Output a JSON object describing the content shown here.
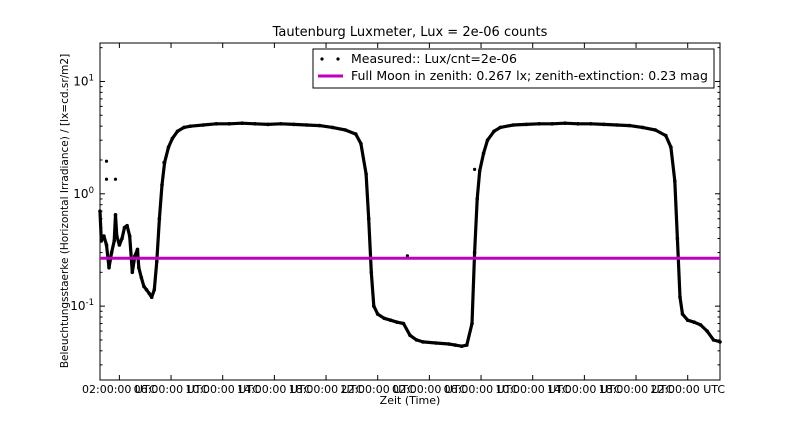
{
  "chart_data": {
    "type": "line",
    "title": "Tautenburg Luxmeter, Lux = 2e-06 counts",
    "xlabel": "Zeit (Time)",
    "ylabel": "Beleuchtungsstaerke (Horizontal Irradiance) / [lx=cd.sr/m2]",
    "yscale": "log",
    "ylim": [
      0.022,
      22
    ],
    "xlim": [
      0,
      48
    ],
    "x_unit": "hours since start of record",
    "x_ticks": [
      {
        "x": 1.5,
        "label": "02:00:00 UTC"
      },
      {
        "x": 5.5,
        "label": "06:00:00 UTC"
      },
      {
        "x": 9.5,
        "label": "10:00:00 UTC"
      },
      {
        "x": 13.5,
        "label": "14:00:00 UTC"
      },
      {
        "x": 17.5,
        "label": "18:00:00 UTC"
      },
      {
        "x": 21.5,
        "label": "22:00:00 UTC"
      },
      {
        "x": 25.5,
        "label": "02:00:00 UTC"
      },
      {
        "x": 29.5,
        "label": "06:00:00 UTC"
      },
      {
        "x": 33.5,
        "label": "10:00:00 UTC"
      },
      {
        "x": 37.5,
        "label": "14:00:00 UTC"
      },
      {
        "x": 41.5,
        "label": "18:00:00 UTC"
      },
      {
        "x": 45.5,
        "label": "22:00:00 UTC"
      }
    ],
    "y_ticks": [
      {
        "value": 0.1,
        "base": "10",
        "exp": "-1"
      },
      {
        "value": 1,
        "base": "10",
        "exp": "0"
      },
      {
        "value": 10,
        "base": "10",
        "exp": "1"
      }
    ],
    "legend_position": "top-right",
    "series": [
      {
        "name": "Measured:: Lux/cnt=2e-06",
        "color": "#000000",
        "marker": "dot",
        "points": [
          [
            0.0,
            0.7
          ],
          [
            0.1,
            0.38
          ],
          [
            0.3,
            0.42
          ],
          [
            0.5,
            0.35
          ],
          [
            0.7,
            0.22
          ],
          [
            0.9,
            0.3
          ],
          [
            1.1,
            0.38
          ],
          [
            1.2,
            0.65
          ],
          [
            1.3,
            0.42
          ],
          [
            1.5,
            0.35
          ],
          [
            1.7,
            0.4
          ],
          [
            1.9,
            0.5
          ],
          [
            2.1,
            0.52
          ],
          [
            2.3,
            0.42
          ],
          [
            2.5,
            0.2
          ],
          [
            2.7,
            0.28
          ],
          [
            2.9,
            0.32
          ],
          [
            3.0,
            0.22
          ],
          [
            3.2,
            0.18
          ],
          [
            3.4,
            0.15
          ],
          [
            3.6,
            0.14
          ],
          [
            3.8,
            0.13
          ],
          [
            4.0,
            0.12
          ],
          [
            4.2,
            0.14
          ],
          [
            4.4,
            0.25
          ],
          [
            4.6,
            0.6
          ],
          [
            4.8,
            1.2
          ],
          [
            5.0,
            1.9
          ],
          [
            5.3,
            2.6
          ],
          [
            5.6,
            3.1
          ],
          [
            6.0,
            3.6
          ],
          [
            6.5,
            3.9
          ],
          [
            7,
            4.0
          ],
          [
            8,
            4.1
          ],
          [
            9,
            4.2
          ],
          [
            10,
            4.2
          ],
          [
            11,
            4.25
          ],
          [
            12,
            4.2
          ],
          [
            13,
            4.15
          ],
          [
            14,
            4.2
          ],
          [
            15,
            4.15
          ],
          [
            16,
            4.1
          ],
          [
            17,
            4.05
          ],
          [
            18,
            3.9
          ],
          [
            19,
            3.7
          ],
          [
            19.8,
            3.4
          ],
          [
            20.2,
            2.8
          ],
          [
            20.6,
            1.5
          ],
          [
            20.8,
            0.6
          ],
          [
            21.0,
            0.2
          ],
          [
            21.2,
            0.1
          ],
          [
            21.5,
            0.085
          ],
          [
            22,
            0.078
          ],
          [
            22.5,
            0.075
          ],
          [
            23,
            0.072
          ],
          [
            23.5,
            0.07
          ],
          [
            24,
            0.055
          ],
          [
            24.5,
            0.05
          ],
          [
            25,
            0.048
          ],
          [
            26,
            0.047
          ],
          [
            27,
            0.046
          ],
          [
            27.5,
            0.045
          ],
          [
            28,
            0.044
          ],
          [
            28.4,
            0.045
          ],
          [
            28.8,
            0.07
          ],
          [
            29.0,
            0.3
          ],
          [
            29.2,
            0.9
          ],
          [
            29.4,
            1.6
          ],
          [
            29.7,
            2.3
          ],
          [
            30,
            3.0
          ],
          [
            30.5,
            3.6
          ],
          [
            31,
            3.9
          ],
          [
            32,
            4.1
          ],
          [
            33,
            4.15
          ],
          [
            34,
            4.2
          ],
          [
            35,
            4.2
          ],
          [
            36,
            4.25
          ],
          [
            37,
            4.2
          ],
          [
            38,
            4.2
          ],
          [
            39,
            4.15
          ],
          [
            40,
            4.1
          ],
          [
            41,
            4.05
          ],
          [
            42,
            3.9
          ],
          [
            43,
            3.7
          ],
          [
            43.8,
            3.3
          ],
          [
            44.2,
            2.6
          ],
          [
            44.5,
            1.3
          ],
          [
            44.7,
            0.4
          ],
          [
            44.9,
            0.12
          ],
          [
            45.1,
            0.085
          ],
          [
            45.5,
            0.075
          ],
          [
            46,
            0.072
          ],
          [
            46.5,
            0.068
          ],
          [
            47,
            0.06
          ],
          [
            47.5,
            0.05
          ],
          [
            48,
            0.048
          ]
        ],
        "outliers": [
          [
            0.5,
            1.95
          ],
          [
            0.5,
            1.35
          ],
          [
            1.2,
            1.35
          ],
          [
            4.95,
            1.9
          ],
          [
            23.8,
            0.28
          ],
          [
            29.0,
            1.65
          ]
        ]
      },
      {
        "name": "Full Moon in zenith: 0.267 lx; zenith-extinction: 0.23 mag",
        "color": "#bf00bf",
        "marker": "line",
        "points": [
          [
            0,
            0.267
          ],
          [
            48,
            0.267
          ]
        ]
      }
    ]
  }
}
